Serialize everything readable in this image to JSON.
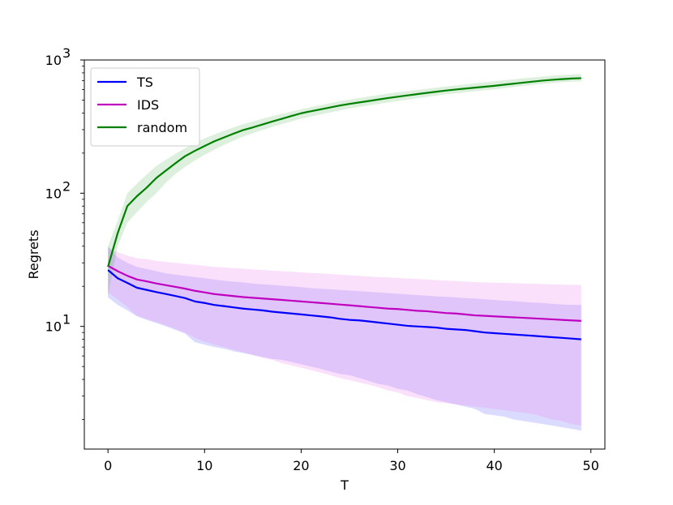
{
  "chart_data": {
    "type": "line",
    "xlabel": "T",
    "ylabel": "Regrets",
    "xlim": [
      -2.45,
      51.45
    ],
    "ylim": [
      1.2,
      1000
    ],
    "yscale": "log",
    "grid": false,
    "legend_position": "upper-left",
    "x_ticks": [
      0,
      10,
      20,
      30,
      40,
      50
    ],
    "y_tick_values": [
      10,
      100,
      1000
    ],
    "y_tick_labels": [
      {
        "base": "10",
        "exp": "1"
      },
      {
        "base": "10",
        "exp": "2"
      },
      {
        "base": "10",
        "exp": "3"
      }
    ],
    "x": [
      0,
      1,
      2,
      3,
      4,
      5,
      6,
      7,
      8,
      9,
      10,
      11,
      12,
      13,
      14,
      15,
      16,
      17,
      18,
      19,
      20,
      21,
      22,
      23,
      24,
      25,
      26,
      27,
      28,
      29,
      30,
      31,
      32,
      33,
      34,
      35,
      36,
      37,
      38,
      39,
      40,
      41,
      42,
      43,
      44,
      45,
      46,
      47,
      48,
      49
    ],
    "series": [
      {
        "name": "TS",
        "color": "#0000ff",
        "band_color": "#0000ff",
        "band_opacity": 0.14,
        "mean": [
          26.5,
          23.0,
          21.2,
          19.5,
          18.8,
          18.1,
          17.5,
          16.9,
          16.3,
          15.4,
          15.0,
          14.5,
          14.2,
          13.9,
          13.6,
          13.4,
          13.2,
          12.9,
          12.7,
          12.5,
          12.3,
          12.1,
          11.9,
          11.7,
          11.4,
          11.2,
          11.1,
          10.9,
          10.7,
          10.5,
          10.3,
          10.1,
          10.0,
          9.9,
          9.8,
          9.6,
          9.5,
          9.4,
          9.2,
          9.0,
          8.9,
          8.8,
          8.7,
          8.6,
          8.5,
          8.4,
          8.3,
          8.2,
          8.1,
          8.0
        ],
        "lower": [
          16.5,
          14.5,
          13.2,
          11.9,
          11.2,
          10.6,
          10.0,
          9.4,
          8.8,
          7.6,
          7.3,
          7.0,
          6.8,
          6.5,
          6.3,
          6.1,
          5.9,
          5.7,
          5.6,
          5.4,
          5.2,
          5.0,
          4.8,
          4.6,
          4.4,
          4.3,
          4.1,
          3.9,
          3.7,
          3.6,
          3.4,
          3.3,
          3.1,
          2.95,
          2.8,
          2.7,
          2.6,
          2.5,
          2.4,
          2.2,
          2.15,
          2.1,
          2.0,
          1.95,
          1.9,
          1.85,
          1.8,
          1.75,
          1.7,
          1.65
        ],
        "upper": [
          40.0,
          33.0,
          30.0,
          28.0,
          27.0,
          26.0,
          25.0,
          24.5,
          24.0,
          23.5,
          23.0,
          22.5,
          22.0,
          21.7,
          21.4,
          21.0,
          20.7,
          20.5,
          20.2,
          20.0,
          19.7,
          19.4,
          19.2,
          19.0,
          18.8,
          18.6,
          18.4,
          18.2,
          18.0,
          17.8,
          17.6,
          17.4,
          17.2,
          17.0,
          16.8,
          16.7,
          16.5,
          16.3,
          16.2,
          16.0,
          15.8,
          15.6,
          15.5,
          15.3,
          15.1,
          15.0,
          14.8,
          14.6,
          14.5,
          14.5
        ]
      },
      {
        "name": "IDS",
        "color": "#bf00bf",
        "band_color": "#ee82ee",
        "band_opacity": 0.25,
        "mean": [
          28.5,
          26.0,
          24.0,
          22.5,
          21.8,
          21.0,
          20.4,
          19.8,
          19.2,
          18.5,
          18.0,
          17.5,
          17.2,
          16.9,
          16.6,
          16.4,
          16.2,
          16.0,
          15.8,
          15.6,
          15.4,
          15.2,
          15.0,
          14.8,
          14.6,
          14.4,
          14.2,
          14.0,
          13.8,
          13.6,
          13.5,
          13.3,
          13.1,
          13.0,
          12.8,
          12.6,
          12.5,
          12.3,
          12.1,
          12.0,
          11.9,
          11.8,
          11.7,
          11.6,
          11.5,
          11.4,
          11.3,
          11.2,
          11.1,
          11.0
        ],
        "lower": [
          18.0,
          16.0,
          14.0,
          12.0,
          11.4,
          10.8,
          10.2,
          9.6,
          9.0,
          8.2,
          7.7,
          7.3,
          7.0,
          6.7,
          6.4,
          6.1,
          5.8,
          5.6,
          5.3,
          5.1,
          4.9,
          4.7,
          4.5,
          4.3,
          4.1,
          3.95,
          3.8,
          3.65,
          3.5,
          3.3,
          3.2,
          3.0,
          2.9,
          2.8,
          2.7,
          2.65,
          2.6,
          2.55,
          2.5,
          2.45,
          2.4,
          2.35,
          2.3,
          2.25,
          2.2,
          2.1,
          2.0,
          1.95,
          1.85,
          1.8
        ],
        "upper": [
          39.0,
          36.0,
          34.0,
          32.5,
          32.0,
          31.0,
          30.5,
          30.0,
          29.5,
          29.0,
          28.5,
          28.0,
          27.7,
          27.4,
          27.1,
          26.8,
          26.5,
          26.2,
          26.0,
          25.7,
          25.4,
          25.2,
          25.0,
          24.7,
          24.4,
          24.2,
          24.0,
          23.7,
          23.5,
          23.3,
          23.1,
          22.9,
          22.7,
          22.5,
          22.3,
          22.1,
          21.9,
          21.7,
          21.5,
          21.4,
          21.3,
          21.2,
          21.1,
          21.0,
          20.9,
          20.8,
          20.7,
          20.6,
          20.5,
          20.5
        ]
      },
      {
        "name": "random",
        "color": "#008000",
        "band_color": "#2ca02c",
        "band_opacity": 0.16,
        "mean": [
          28.0,
          50.0,
          80.0,
          95.0,
          110.0,
          130.0,
          148.0,
          168.0,
          190.0,
          208.0,
          226.0,
          245.0,
          262.0,
          280.0,
          298.0,
          312.0,
          328.0,
          345.0,
          362.0,
          380.0,
          398.0,
          412.0,
          426.0,
          440.0,
          455.0,
          468.0,
          480.0,
          492.0,
          505.0,
          518.0,
          530.0,
          542.0,
          554.0,
          566.0,
          578.0,
          590.0,
          600.0,
          610.0,
          620.0,
          630.0,
          640.0,
          652.0,
          664.0,
          676.0,
          688.0,
          700.0,
          710.0,
          718.0,
          726.0,
          730.0
        ],
        "lower": [
          17.0,
          40.0,
          60.0,
          72.0,
          86.0,
          100.0,
          120.0,
          140.0,
          158.0,
          176.0,
          194.0,
          212.0,
          230.0,
          248.0,
          266.0,
          282.0,
          298.0,
          314.0,
          330.0,
          346.0,
          362.0,
          376.0,
          390.0,
          404.0,
          418.0,
          432.0,
          444.0,
          456.0,
          468.0,
          480.0,
          492.0,
          504.0,
          516.0,
          528.0,
          540.0,
          552.0,
          562.0,
          572.0,
          582.0,
          592.0,
          602.0,
          614.0,
          626.0,
          638.0,
          650.0,
          662.0,
          672.0,
          680.0,
          688.0,
          692.0
        ],
        "upper": [
          40.0,
          62.0,
          100.0,
          118.0,
          138.0,
          160.0,
          178.0,
          198.0,
          218.0,
          238.0,
          258.0,
          276.0,
          294.0,
          312.0,
          330.0,
          346.0,
          362.0,
          378.0,
          394.0,
          410.0,
          426.0,
          442.0,
          458.0,
          474.0,
          490.0,
          504.0,
          518.0,
          532.0,
          546.0,
          560.0,
          572.0,
          584.0,
          596.0,
          608.0,
          620.0,
          632.0,
          644.0,
          656.0,
          668.0,
          680.0,
          692.0,
          704.0,
          716.0,
          728.0,
          740.0,
          752.0,
          762.0,
          770.0,
          778.0,
          782.0
        ]
      }
    ]
  }
}
